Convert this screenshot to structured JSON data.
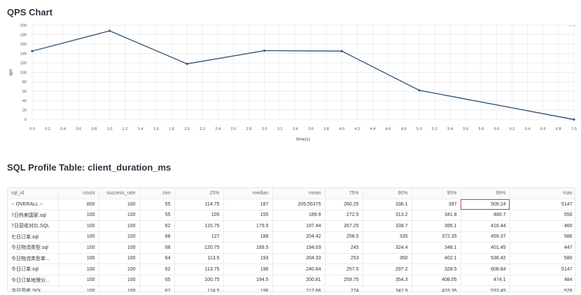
{
  "qps_section": {
    "title": "QPS Chart",
    "menu_icon": "ellipsis-icon",
    "menu_glyph": "⋯"
  },
  "chart_data": {
    "type": "line",
    "x": [
      0,
      1,
      2,
      3,
      4,
      5,
      7
    ],
    "series": [
      {
        "values": [
          145,
          188,
          118,
          146,
          145,
          62,
          0
        ]
      }
    ],
    "xlabel": "time(s)",
    "ylabel": "qps",
    "xlim": [
      0,
      7
    ],
    "ylim": [
      0,
      200
    ],
    "x_ticks": [
      "0.0",
      "0.2",
      "0.4",
      "0.6",
      "0.8",
      "1.0",
      "1.2",
      "1.4",
      "1.6",
      "1.8",
      "2.0",
      "2.2",
      "2.4",
      "2.6",
      "2.8",
      "3.0",
      "3.2",
      "3.4",
      "3.6",
      "3.8",
      "4.0",
      "4.2",
      "4.4",
      "4.6",
      "4.8",
      "5.0",
      "5.2",
      "5.4",
      "5.6",
      "5.8",
      "6.0",
      "6.2",
      "6.4",
      "6.6",
      "6.8",
      "7.0"
    ],
    "y_ticks": [
      "0",
      "20",
      "40",
      "60",
      "80",
      "100",
      "120",
      "140",
      "160",
      "180",
      "200"
    ],
    "grid": true,
    "line_color": "#3b5a7a"
  },
  "table_section": {
    "title": "SQL Profile Table: client_duration_ms",
    "columns": [
      "sql_id",
      "count",
      "success_rate",
      "min",
      "25%",
      "median",
      "mean",
      "75%",
      "90%",
      "95%",
      "99%",
      "max"
    ],
    "rows": [
      [
        "-- OVERALL --",
        "800",
        "100",
        "55",
        "114.75",
        "187",
        "205.55375",
        "260.25",
        "336.1",
        "397",
        "509.24",
        "5147"
      ],
      [
        "7日热卖国家.sql",
        "100",
        "100",
        "55",
        "105",
        "155",
        "189.9",
        "272.5",
        "313.2",
        "341.8",
        "480.7",
        "550"
      ],
      [
        "7日营收对比.SQL",
        "100",
        "100",
        "62",
        "115.75",
        "179.5",
        "197.44",
        "267.25",
        "338.7",
        "395.1",
        "416.44",
        "460"
      ],
      [
        "七日订单.sql",
        "100",
        "100",
        "68",
        "127",
        "188",
        "204.42",
        "258.5",
        "335",
        "372.35",
        "459.37",
        "586"
      ],
      [
        "今日物流类型.sql",
        "100",
        "100",
        "68",
        "120.75",
        "189.5",
        "194.03",
        "245",
        "324.4",
        "348.1",
        "401.45",
        "447"
      ],
      [
        "今日物流类型单...",
        "100",
        "100",
        "64",
        "113.5",
        "193",
        "204.33",
        "253",
        "350",
        "402.1",
        "538.42",
        "580"
      ],
      [
        "今日订单.sql",
        "100",
        "100",
        "62",
        "113.75",
        "196",
        "240.84",
        "257.5",
        "297.2",
        "328.5",
        "608.84",
        "5147"
      ],
      [
        "今日订单地理分...",
        "100",
        "100",
        "65",
        "100.75",
        "194.5",
        "200.81",
        "259.75",
        "354.3",
        "408.05",
        "474.1",
        "484"
      ],
      [
        "当日营收.SQL",
        "100",
        "100",
        "62",
        "124.5",
        "196",
        "212.66",
        "274",
        "342.9",
        "433.35",
        "533.45",
        "578"
      ]
    ]
  }
}
